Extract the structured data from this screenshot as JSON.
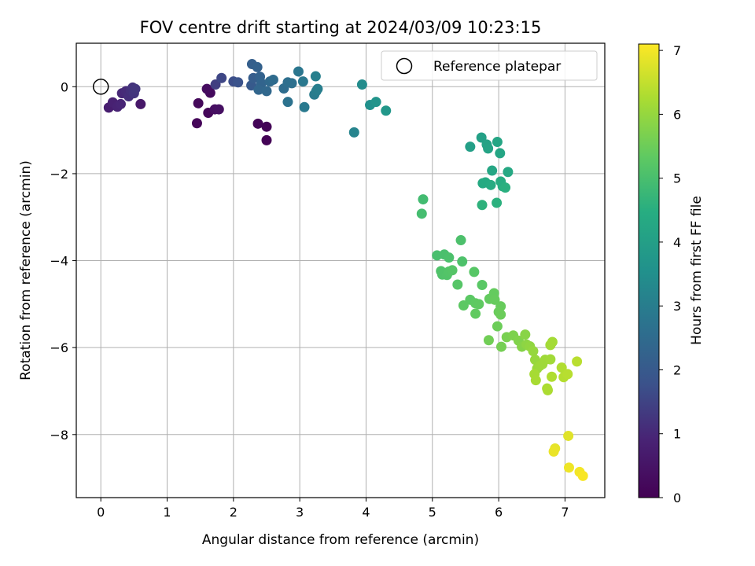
{
  "chart_data": {
    "type": "scatter",
    "title": "FOV centre drift starting at 2024/03/09 10:23:15",
    "xlabel": "Angular distance from reference (arcmin)",
    "ylabel": "Rotation from reference (arcmin)",
    "xlim": [
      -0.37,
      7.6
    ],
    "ylim": [
      -9.45,
      1.0
    ],
    "xticks": [
      "0",
      "1",
      "2",
      "3",
      "4",
      "5",
      "6",
      "7"
    ],
    "yticks": [
      "0",
      "−2",
      "−4",
      "−6",
      "−8"
    ],
    "grid": true,
    "legend": {
      "position": "top-right",
      "entries": [
        "Reference platepar"
      ]
    },
    "reference_point": {
      "x": 0,
      "y": 0
    },
    "colorbar": {
      "label": "Hours from first FF file",
      "range": [
        0,
        7.1
      ],
      "ticks": [
        "0",
        "1",
        "2",
        "3",
        "4",
        "5",
        "6",
        "7"
      ],
      "colormap": "viridis"
    },
    "points": [
      {
        "x": 2.5,
        "y": -1.23,
        "c": 0.05
      },
      {
        "x": 2.5,
        "y": -0.92,
        "c": 0.08
      },
      {
        "x": 2.37,
        "y": -0.85,
        "c": 0.1
      },
      {
        "x": 1.45,
        "y": -0.84,
        "c": 0.13
      },
      {
        "x": 1.62,
        "y": -0.6,
        "c": 0.17
      },
      {
        "x": 1.47,
        "y": -0.38,
        "c": 0.2
      },
      {
        "x": 1.65,
        "y": -0.14,
        "c": 0.25
      },
      {
        "x": 1.6,
        "y": -0.05,
        "c": 0.3
      },
      {
        "x": 1.72,
        "y": -0.52,
        "c": 0.35
      },
      {
        "x": 1.78,
        "y": -0.52,
        "c": 0.4
      },
      {
        "x": 0.6,
        "y": -0.4,
        "c": 0.6
      },
      {
        "x": 0.12,
        "y": -0.48,
        "c": 0.75
      },
      {
        "x": 0.18,
        "y": -0.36,
        "c": 0.85
      },
      {
        "x": 0.25,
        "y": -0.46,
        "c": 0.9
      },
      {
        "x": 0.3,
        "y": -0.4,
        "c": 0.95
      },
      {
        "x": 0.32,
        "y": -0.15,
        "c": 1.0
      },
      {
        "x": 0.38,
        "y": -0.1,
        "c": 1.05
      },
      {
        "x": 0.42,
        "y": -0.22,
        "c": 1.1
      },
      {
        "x": 0.45,
        "y": -0.08,
        "c": 1.15
      },
      {
        "x": 0.48,
        "y": -0.02,
        "c": 1.2
      },
      {
        "x": 0.5,
        "y": -0.15,
        "c": 1.22
      },
      {
        "x": 0.52,
        "y": -0.05,
        "c": 1.25
      },
      {
        "x": 1.73,
        "y": 0.05,
        "c": 1.4
      },
      {
        "x": 1.82,
        "y": 0.2,
        "c": 1.55
      },
      {
        "x": 2.0,
        "y": 0.12,
        "c": 1.7
      },
      {
        "x": 2.07,
        "y": 0.1,
        "c": 1.8
      },
      {
        "x": 2.27,
        "y": 0.03,
        "c": 2.0
      },
      {
        "x": 2.3,
        "y": 0.2,
        "c": 2.1
      },
      {
        "x": 2.28,
        "y": 0.52,
        "c": 2.15
      },
      {
        "x": 2.36,
        "y": 0.45,
        "c": 2.2
      },
      {
        "x": 2.4,
        "y": 0.23,
        "c": 2.25
      },
      {
        "x": 2.42,
        "y": 0.08,
        "c": 2.3
      },
      {
        "x": 2.38,
        "y": -0.07,
        "c": 2.35
      },
      {
        "x": 2.5,
        "y": -0.1,
        "c": 2.4
      },
      {
        "x": 2.55,
        "y": 0.12,
        "c": 2.45
      },
      {
        "x": 2.6,
        "y": 0.16,
        "c": 2.5
      },
      {
        "x": 2.76,
        "y": -0.04,
        "c": 2.55
      },
      {
        "x": 2.82,
        "y": 0.1,
        "c": 2.6
      },
      {
        "x": 2.88,
        "y": 0.08,
        "c": 2.65
      },
      {
        "x": 2.82,
        "y": -0.35,
        "c": 2.7
      },
      {
        "x": 2.98,
        "y": 0.35,
        "c": 2.8
      },
      {
        "x": 3.05,
        "y": 0.12,
        "c": 2.85
      },
      {
        "x": 3.07,
        "y": -0.47,
        "c": 2.9
      },
      {
        "x": 3.22,
        "y": -0.18,
        "c": 2.95
      },
      {
        "x": 3.25,
        "y": -0.1,
        "c": 3.0
      },
      {
        "x": 3.27,
        "y": -0.05,
        "c": 3.02
      },
      {
        "x": 3.24,
        "y": 0.24,
        "c": 3.05
      },
      {
        "x": 3.82,
        "y": -1.05,
        "c": 3.2
      },
      {
        "x": 3.94,
        "y": 0.05,
        "c": 3.4
      },
      {
        "x": 4.06,
        "y": -0.42,
        "c": 3.55
      },
      {
        "x": 4.15,
        "y": -0.35,
        "c": 3.65
      },
      {
        "x": 4.3,
        "y": -0.55,
        "c": 3.75
      },
      {
        "x": 5.57,
        "y": -1.38,
        "c": 4.0
      },
      {
        "x": 5.74,
        "y": -1.17,
        "c": 4.05
      },
      {
        "x": 5.82,
        "y": -1.33,
        "c": 4.1
      },
      {
        "x": 5.84,
        "y": -1.42,
        "c": 4.15
      },
      {
        "x": 5.98,
        "y": -1.27,
        "c": 4.2
      },
      {
        "x": 6.02,
        "y": -1.53,
        "c": 4.22
      },
      {
        "x": 5.9,
        "y": -1.93,
        "c": 4.25
      },
      {
        "x": 6.14,
        "y": -1.96,
        "c": 4.3
      },
      {
        "x": 5.76,
        "y": -2.22,
        "c": 4.35
      },
      {
        "x": 5.8,
        "y": -2.2,
        "c": 4.38
      },
      {
        "x": 5.88,
        "y": -2.26,
        "c": 4.4
      },
      {
        "x": 6.03,
        "y": -2.18,
        "c": 4.45
      },
      {
        "x": 6.06,
        "y": -2.29,
        "c": 4.48
      },
      {
        "x": 6.1,
        "y": -2.32,
        "c": 4.52
      },
      {
        "x": 5.97,
        "y": -2.67,
        "c": 4.55
      },
      {
        "x": 5.75,
        "y": -2.72,
        "c": 4.6
      },
      {
        "x": 4.86,
        "y": -2.59,
        "c": 4.9
      },
      {
        "x": 4.84,
        "y": -2.92,
        "c": 4.95
      },
      {
        "x": 5.07,
        "y": -3.88,
        "c": 5.0
      },
      {
        "x": 5.18,
        "y": -3.86,
        "c": 5.02
      },
      {
        "x": 5.25,
        "y": -3.93,
        "c": 5.04
      },
      {
        "x": 5.43,
        "y": -3.53,
        "c": 5.06
      },
      {
        "x": 5.45,
        "y": -4.02,
        "c": 5.08
      },
      {
        "x": 5.13,
        "y": -4.24,
        "c": 5.1
      },
      {
        "x": 5.15,
        "y": -4.32,
        "c": 5.12
      },
      {
        "x": 5.22,
        "y": -4.33,
        "c": 5.14
      },
      {
        "x": 5.25,
        "y": -4.25,
        "c": 5.16
      },
      {
        "x": 5.3,
        "y": -4.22,
        "c": 5.18
      },
      {
        "x": 5.38,
        "y": -4.55,
        "c": 5.2
      },
      {
        "x": 5.63,
        "y": -4.26,
        "c": 5.22
      },
      {
        "x": 5.75,
        "y": -4.56,
        "c": 5.25
      },
      {
        "x": 5.57,
        "y": -4.9,
        "c": 5.28
      },
      {
        "x": 5.47,
        "y": -5.03,
        "c": 5.3
      },
      {
        "x": 5.65,
        "y": -4.98,
        "c": 5.32
      },
      {
        "x": 5.7,
        "y": -5.0,
        "c": 5.34
      },
      {
        "x": 5.65,
        "y": -5.22,
        "c": 5.36
      },
      {
        "x": 5.86,
        "y": -4.88,
        "c": 5.38
      },
      {
        "x": 5.93,
        "y": -4.75,
        "c": 5.4
      },
      {
        "x": 5.94,
        "y": -4.9,
        "c": 5.42
      },
      {
        "x": 6.03,
        "y": -5.05,
        "c": 5.44
      },
      {
        "x": 6.0,
        "y": -5.18,
        "c": 5.46
      },
      {
        "x": 6.03,
        "y": -5.24,
        "c": 5.48
      },
      {
        "x": 5.98,
        "y": -5.51,
        "c": 5.5
      },
      {
        "x": 5.85,
        "y": -5.83,
        "c": 5.55
      },
      {
        "x": 6.04,
        "y": -5.98,
        "c": 5.6
      },
      {
        "x": 6.12,
        "y": -5.76,
        "c": 5.65
      },
      {
        "x": 6.22,
        "y": -5.72,
        "c": 5.7
      },
      {
        "x": 6.3,
        "y": -5.84,
        "c": 5.75
      },
      {
        "x": 6.35,
        "y": -5.98,
        "c": 5.8
      },
      {
        "x": 6.4,
        "y": -5.7,
        "c": 5.85
      },
      {
        "x": 6.42,
        "y": -5.93,
        "c": 5.9
      },
      {
        "x": 6.47,
        "y": -5.97,
        "c": 5.95
      },
      {
        "x": 6.52,
        "y": -6.08,
        "c": 6.0
      },
      {
        "x": 6.55,
        "y": -6.28,
        "c": 6.02
      },
      {
        "x": 6.58,
        "y": -6.48,
        "c": 6.05
      },
      {
        "x": 6.62,
        "y": -6.42,
        "c": 6.08
      },
      {
        "x": 6.66,
        "y": -6.38,
        "c": 6.1
      },
      {
        "x": 6.7,
        "y": -6.28,
        "c": 6.12
      },
      {
        "x": 6.78,
        "y": -6.27,
        "c": 6.14
      },
      {
        "x": 6.78,
        "y": -5.94,
        "c": 6.16
      },
      {
        "x": 6.81,
        "y": -5.87,
        "c": 6.18
      },
      {
        "x": 6.54,
        "y": -6.61,
        "c": 6.2
      },
      {
        "x": 6.56,
        "y": -6.75,
        "c": 6.22
      },
      {
        "x": 6.73,
        "y": -6.94,
        "c": 6.25
      },
      {
        "x": 6.74,
        "y": -6.98,
        "c": 6.27
      },
      {
        "x": 6.8,
        "y": -6.67,
        "c": 6.3
      },
      {
        "x": 6.95,
        "y": -6.46,
        "c": 6.32
      },
      {
        "x": 6.98,
        "y": -6.68,
        "c": 6.35
      },
      {
        "x": 7.04,
        "y": -6.61,
        "c": 6.38
      },
      {
        "x": 7.18,
        "y": -6.32,
        "c": 6.4
      },
      {
        "x": 7.05,
        "y": -8.03,
        "c": 6.8
      },
      {
        "x": 6.85,
        "y": -8.32,
        "c": 6.85
      },
      {
        "x": 6.83,
        "y": -8.39,
        "c": 6.9
      },
      {
        "x": 7.06,
        "y": -8.76,
        "c": 6.95
      },
      {
        "x": 7.22,
        "y": -8.86,
        "c": 7.0
      },
      {
        "x": 7.27,
        "y": -8.95,
        "c": 7.05
      }
    ]
  }
}
